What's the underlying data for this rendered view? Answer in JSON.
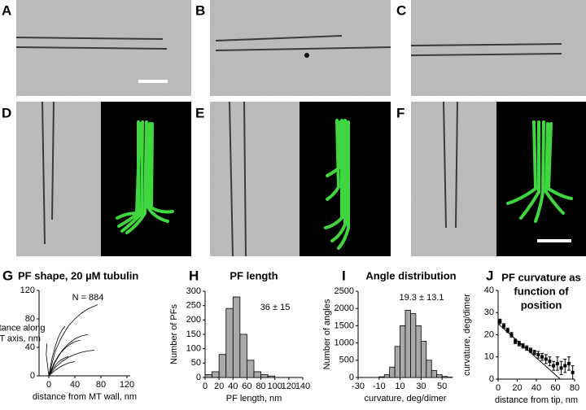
{
  "image_panels": [
    {
      "label": "A"
    },
    {
      "label": "B"
    },
    {
      "label": "C"
    },
    {
      "label": "D"
    },
    {
      "label": "E"
    },
    {
      "label": "F"
    }
  ],
  "chart_data": [
    {
      "type": "line",
      "panel_label": "G",
      "title": "PF shape, 20 µM tubulin",
      "xlabel": "distance from MT wall, nm",
      "ylabel_lines": [
        "distance along",
        "MT axis, nm"
      ],
      "annotation": "N = 884",
      "xlim": [
        -15,
        125
      ],
      "xticks": [
        0,
        40,
        80,
        120
      ],
      "ylim": [
        0,
        120
      ],
      "yticks": [
        0,
        40,
        80,
        120
      ],
      "color": "#000000",
      "series": [
        {
          "x": [
            0,
            10,
            20,
            30,
            40,
            50,
            60,
            70,
            75
          ],
          "values": [
            0,
            35,
            55,
            70,
            80,
            88,
            94,
            98,
            100
          ]
        },
        {
          "x": [
            0,
            10,
            20,
            30,
            40,
            50,
            60
          ],
          "values": [
            0,
            20,
            35,
            45,
            52,
            56,
            58
          ]
        },
        {
          "x": [
            0,
            10,
            20,
            30,
            40,
            50,
            60,
            70
          ],
          "values": [
            0,
            12,
            20,
            26,
            30,
            33,
            35,
            36
          ]
        },
        {
          "x": [
            0,
            5,
            10,
            15,
            20,
            25
          ],
          "values": [
            0,
            25,
            42,
            55,
            64,
            70
          ]
        },
        {
          "x": [
            0,
            10,
            20,
            30,
            40
          ],
          "values": [
            0,
            8,
            14,
            18,
            20
          ]
        },
        {
          "x": [
            0,
            -2,
            -4,
            -3
          ],
          "values": [
            0,
            15,
            30,
            45
          ]
        },
        {
          "x": [
            0,
            8,
            16,
            24,
            32,
            40,
            48
          ],
          "values": [
            0,
            18,
            30,
            38,
            44,
            48,
            50
          ]
        },
        {
          "x": [
            0,
            6,
            12,
            18,
            24,
            30
          ],
          "values": [
            0,
            10,
            17,
            22,
            25,
            27
          ]
        }
      ]
    },
    {
      "type": "histogram",
      "panel_label": "H",
      "title": "PF length",
      "xlabel": "PF length, nm",
      "ylabel": "Number of PFs",
      "annotation": "36 ± 15",
      "bins": [
        0,
        10,
        20,
        30,
        40,
        50,
        60,
        70,
        80,
        90,
        100
      ],
      "counts": [
        10,
        20,
        80,
        240,
        280,
        150,
        60,
        20,
        10,
        5
      ],
      "color": "#a9a9a9",
      "xlim": [
        0,
        140
      ],
      "xticks": [
        0,
        20,
        40,
        60,
        80,
        100,
        120,
        140
      ],
      "ylim": [
        0,
        300
      ],
      "yticks": [
        0,
        50,
        100,
        150,
        200,
        250,
        300
      ]
    },
    {
      "type": "histogram",
      "panel_label": "I",
      "title": "Angle distribution",
      "xlabel": "curvature, deg/dimer",
      "ylabel": "Number of angles",
      "annotation": "19.3 ± 13.1",
      "bins": [
        -10,
        -5,
        0,
        5,
        10,
        15,
        20,
        25,
        30,
        35,
        40,
        45,
        50,
        55,
        60
      ],
      "counts": [
        20,
        80,
        300,
        900,
        1500,
        1950,
        1850,
        1500,
        1050,
        500,
        200,
        80,
        30,
        10
      ],
      "color": "#a9a9a9",
      "xlim": [
        -30,
        60
      ],
      "xticks": [
        -30,
        -10,
        10,
        30,
        50
      ],
      "ylim": [
        0,
        2500
      ],
      "yticks": [
        0,
        500,
        1000,
        1500,
        2000,
        2500
      ]
    },
    {
      "type": "scatter",
      "panel_label": "J",
      "title_lines": [
        "PF curvature as",
        "function of",
        "position"
      ],
      "xlabel": "distance from tip, nm",
      "ylabel": "curvature, deg/dimer",
      "x": [
        2,
        6,
        10,
        14,
        18,
        22,
        26,
        30,
        34,
        38,
        42,
        46,
        50,
        54,
        58,
        62,
        66,
        70,
        74,
        78
      ],
      "values": [
        26,
        24,
        22,
        20,
        17,
        16,
        15,
        14,
        13,
        12,
        11,
        10,
        9,
        8,
        6,
        7,
        5,
        6,
        7,
        3
      ],
      "errors": [
        1,
        1,
        1,
        1,
        1,
        1,
        1,
        1,
        1,
        1,
        1.5,
        1.5,
        2,
        2,
        2,
        3,
        3,
        3,
        3,
        3
      ],
      "trend_line": {
        "x": [
          0,
          65
        ],
        "values": [
          25,
          0
        ]
      },
      "color": "#000000",
      "xlim": [
        0,
        80
      ],
      "xticks": [
        0,
        20,
        40,
        60,
        80
      ],
      "ylim": [
        0,
        40
      ],
      "yticks": [
        0,
        10,
        20,
        30,
        40
      ]
    }
  ]
}
